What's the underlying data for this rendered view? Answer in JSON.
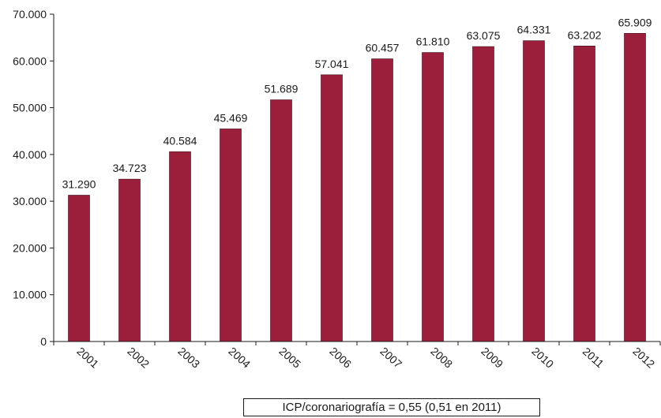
{
  "colors": {
    "bar": "#9b1f3a",
    "axis": "#1a1a1a"
  },
  "chart_data": {
    "type": "bar",
    "title": "",
    "xlabel": "",
    "ylabel": "",
    "ylim": [
      0,
      70000
    ],
    "yticks": [
      0,
      10000,
      20000,
      30000,
      40000,
      50000,
      60000,
      70000
    ],
    "ytick_labels": [
      "0",
      "10.000",
      "20.000",
      "30.000",
      "40.000",
      "50.000",
      "60.000",
      "70.000"
    ],
    "grid": false,
    "categories": [
      "2001",
      "2002",
      "2003",
      "2004",
      "2005",
      "2006",
      "2007",
      "2008",
      "2009",
      "2010",
      "2011",
      "2012"
    ],
    "values": [
      31290,
      34723,
      40584,
      45469,
      51689,
      57041,
      60457,
      61810,
      63075,
      64331,
      63202,
      65909
    ],
    "value_labels": [
      "31.290",
      "34.723",
      "40.584",
      "45.469",
      "51.689",
      "57.041",
      "60.457",
      "61.810",
      "63.075",
      "64.331",
      "63.202",
      "65.909"
    ],
    "annotation": "ICP/coronariografía = 0,55 (0,51 en 2011)"
  }
}
